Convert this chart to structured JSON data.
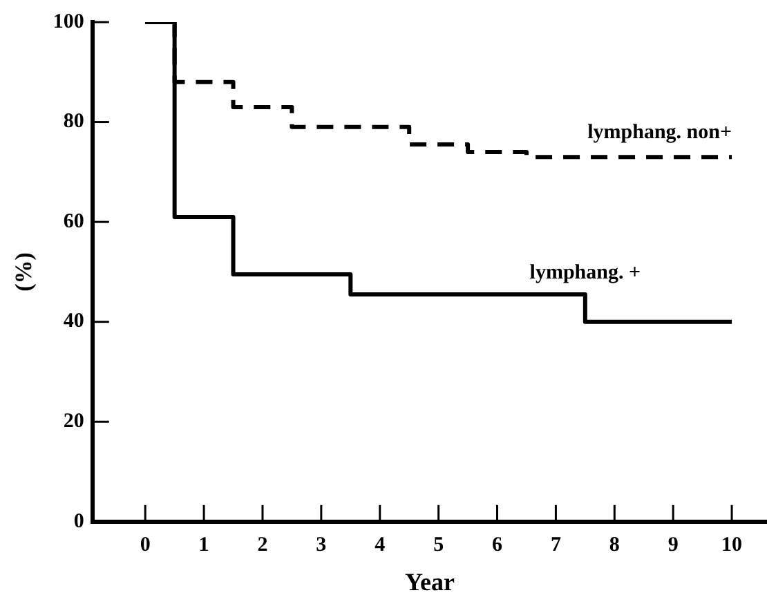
{
  "chart_data": {
    "type": "step",
    "xlabel": "Year",
    "ylabel": "(%)",
    "xlim": [
      -0.9,
      10.6
    ],
    "xticks": [
      0,
      1,
      2,
      3,
      4,
      5,
      6,
      7,
      8,
      9,
      10
    ],
    "ylim": [
      0,
      100
    ],
    "yticks": [
      0,
      20,
      40,
      60,
      80,
      100
    ],
    "grid": false,
    "legend": false,
    "marker": "none",
    "series": [
      {
        "name": "lymphang. non+",
        "color": "#000000",
        "line_style": "dashed",
        "x": [
          0,
          0.5,
          1.5,
          2.5,
          4.5,
          5.5,
          6.5,
          10
        ],
        "values": [
          100,
          88,
          83,
          79,
          75.5,
          74,
          73,
          73
        ]
      },
      {
        "name": "lymphang. +",
        "color": "#000000",
        "line_style": "solid",
        "x": [
          0,
          0.5,
          1.5,
          3.5,
          7.5,
          10
        ],
        "values": [
          100,
          61,
          49.5,
          45.5,
          40,
          40
        ]
      }
    ]
  }
}
